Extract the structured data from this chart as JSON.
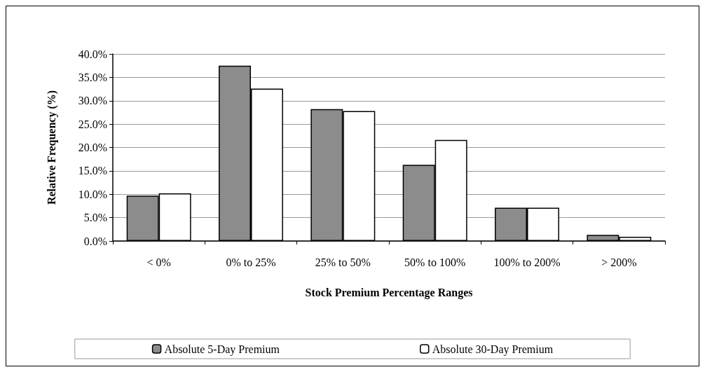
{
  "chart_data": {
    "type": "bar",
    "xlabel": "Stock Premium Percentage Ranges",
    "ylabel": "Relative Frequency (%)",
    "categories": [
      "< 0%",
      "0% to 25%",
      "25% to 50%",
      "50% to 100%",
      "100% to 200%",
      "> 200%"
    ],
    "series": [
      {
        "name": "Absolute 5-Day Premium",
        "color": "#8c8c8c",
        "values": [
          9.7,
          37.5,
          28.2,
          16.3,
          7.1,
          1.3
        ]
      },
      {
        "name": "Absolute 30-Day Premium",
        "color": "#ffffff",
        "values": [
          10.2,
          32.6,
          27.8,
          21.6,
          7.1,
          0.9
        ]
      }
    ],
    "ylim": [
      0,
      40
    ],
    "yticks": [
      {
        "value": 0,
        "label": "0.0%"
      },
      {
        "value": 5,
        "label": "5.0%"
      },
      {
        "value": 10,
        "label": "10.0%"
      },
      {
        "value": 15,
        "label": "15.0%"
      },
      {
        "value": 20,
        "label": "20.0%"
      },
      {
        "value": 25,
        "label": "25.0%"
      },
      {
        "value": 30,
        "label": "30.0%"
      },
      {
        "value": 35,
        "label": "35.0%"
      },
      {
        "value": 40,
        "label": "40.0%"
      }
    ],
    "grid": "y",
    "legend": "bottom"
  }
}
